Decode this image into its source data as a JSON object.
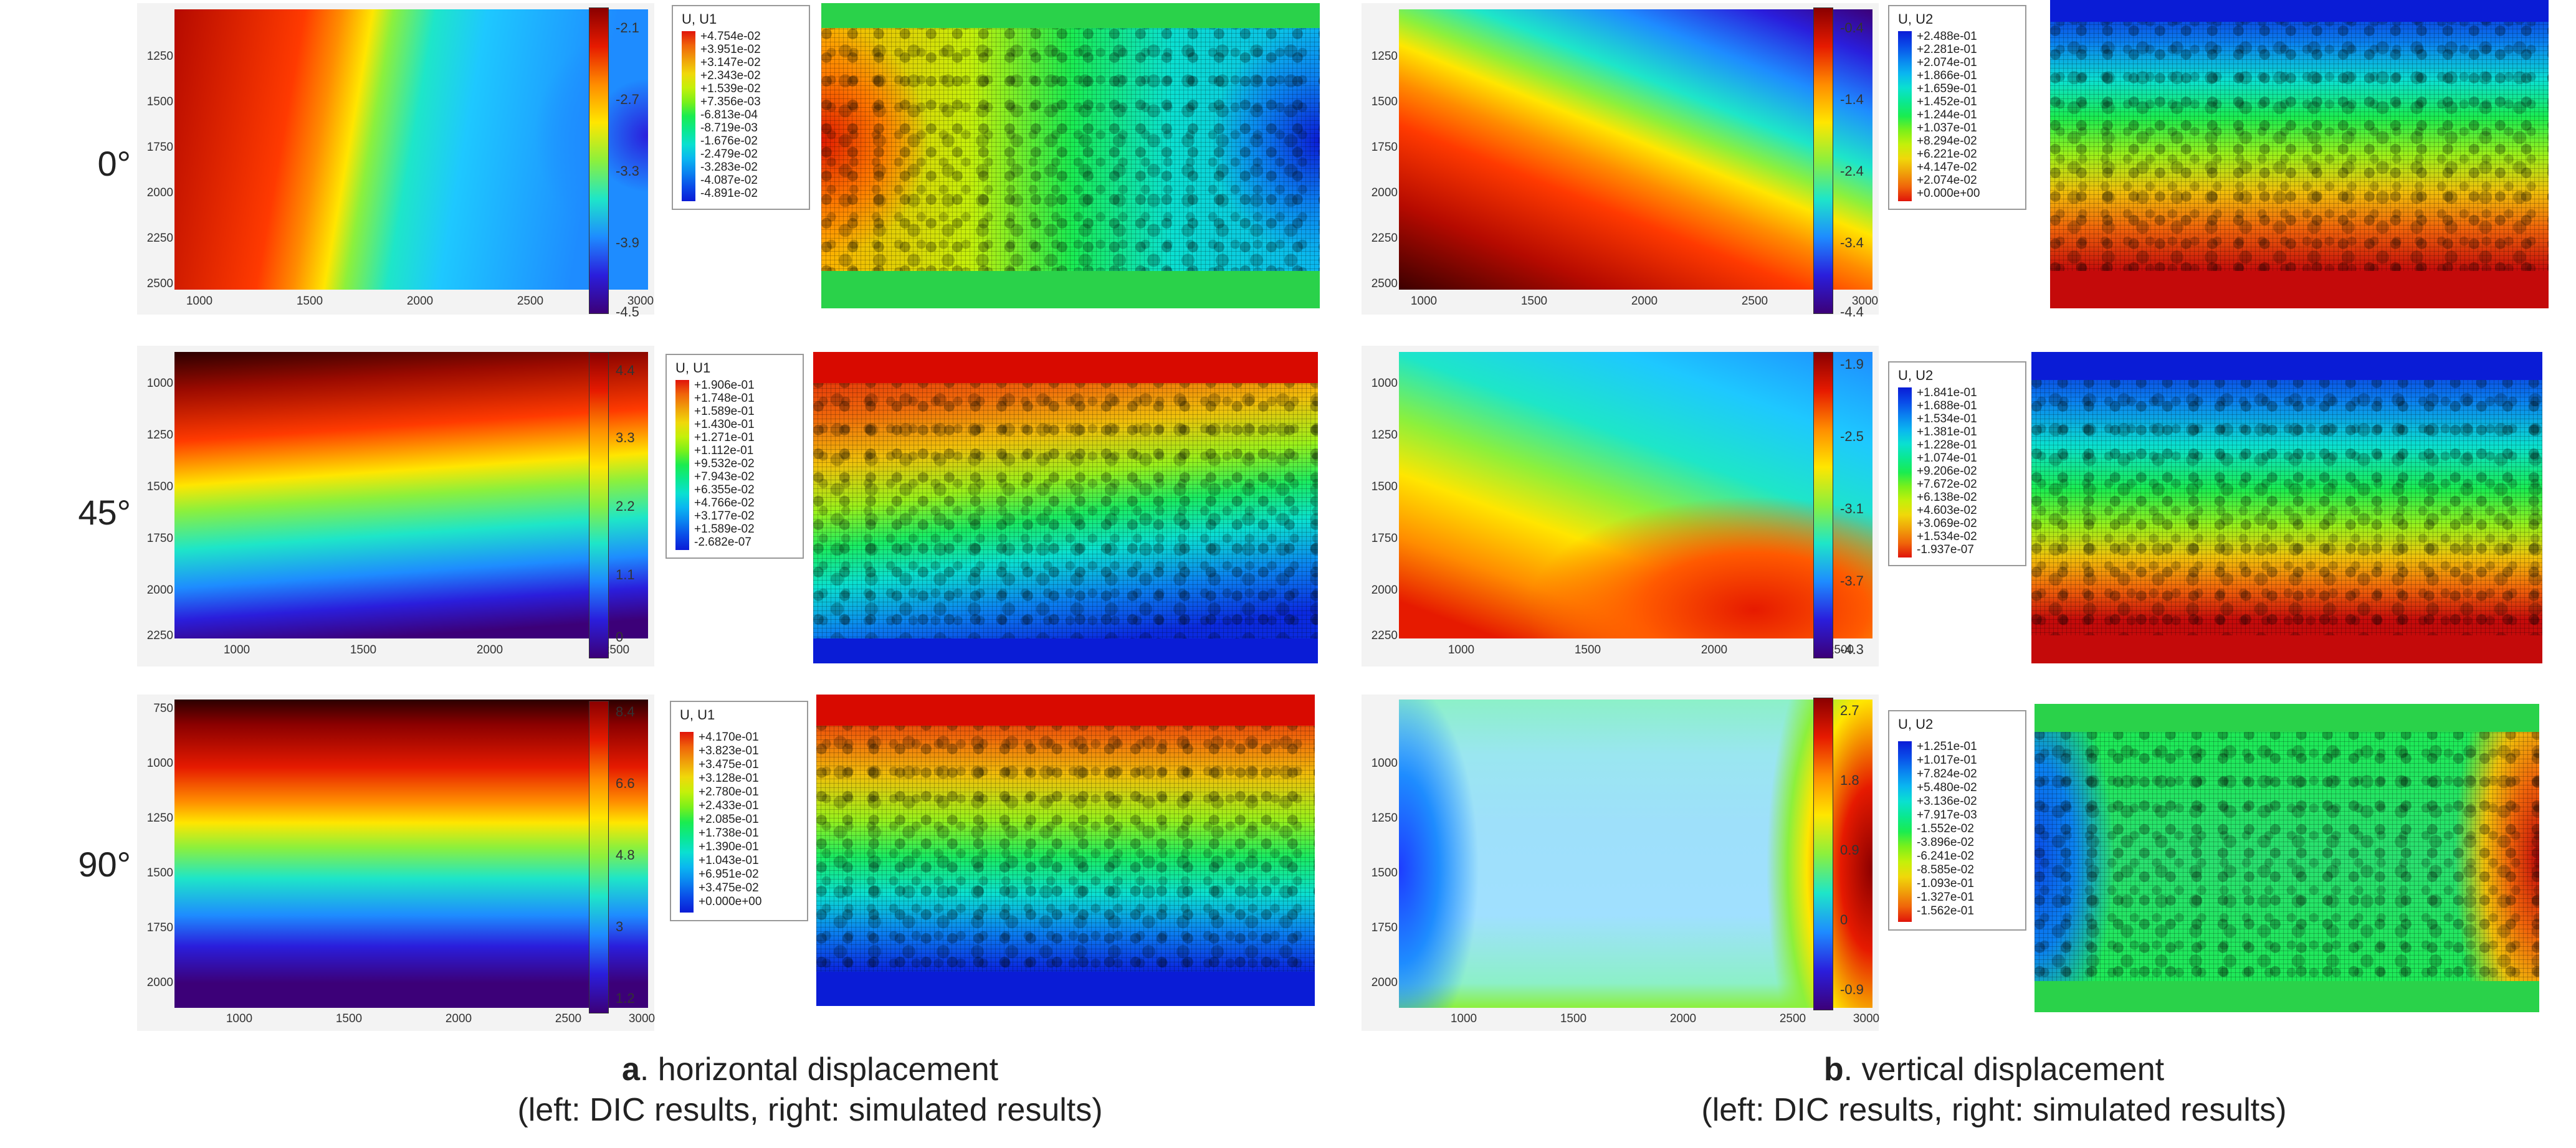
{
  "rows": [
    {
      "label": "0°"
    },
    {
      "label": "45°"
    },
    {
      "label": "90°"
    }
  ],
  "panels_a": [
    {
      "yticks": [
        "1250",
        "1500",
        "1750",
        "2000",
        "2250",
        "2500"
      ],
      "xticks": [
        "1000",
        "1500",
        "2000",
        "2500",
        "3000"
      ],
      "cbar": [
        "-2.1",
        "-2.7",
        "-3.3",
        "-3.9",
        "-4.5"
      ],
      "legend_title": "U, U1",
      "legend": [
        "+4.754e-02",
        "+3.951e-02",
        "+3.147e-02",
        "+2.343e-02",
        "+1.539e-02",
        "+7.356e-03",
        "-6.813e-04",
        "-8.719e-03",
        "-1.676e-02",
        "-2.479e-02",
        "-3.283e-02",
        "-4.087e-02",
        "-4.891e-02"
      ]
    },
    {
      "yticks": [
        "1000",
        "1250",
        "1500",
        "1750",
        "2000",
        "2250"
      ],
      "xticks": [
        "1000",
        "1500",
        "2000",
        "2500"
      ],
      "cbar": [
        "4.4",
        "3.3",
        "2.2",
        "1.1",
        "0"
      ],
      "legend_title": "U, U1",
      "legend": [
        "+1.906e-01",
        "+1.748e-01",
        "+1.589e-01",
        "+1.430e-01",
        "+1.271e-01",
        "+1.112e-01",
        "+9.532e-02",
        "+7.943e-02",
        "+6.355e-02",
        "+4.766e-02",
        "+3.177e-02",
        "+1.589e-02",
        "-2.682e-07"
      ]
    },
    {
      "yticks": [
        "750",
        "1000",
        "1250",
        "1500",
        "1750",
        "2000"
      ],
      "xticks": [
        "1000",
        "1500",
        "2000",
        "2500",
        "3000"
      ],
      "cbar": [
        "8.4",
        "6.6",
        "4.8",
        "3",
        "1.2"
      ],
      "legend_title": "U, U1",
      "legend": [
        "+4.170e-01",
        "+3.823e-01",
        "+3.475e-01",
        "+3.128e-01",
        "+2.780e-01",
        "+2.433e-01",
        "+2.085e-01",
        "+1.738e-01",
        "+1.390e-01",
        "+1.043e-01",
        "+6.951e-02",
        "+3.475e-02",
        "+0.000e+00"
      ]
    }
  ],
  "panels_b": [
    {
      "yticks": [
        "1250",
        "1500",
        "1750",
        "2000",
        "2250",
        "2500"
      ],
      "xticks": [
        "1000",
        "1500",
        "2000",
        "2500",
        "3000"
      ],
      "cbar": [
        "-0.4",
        "-1.4",
        "-2.4",
        "-3.4",
        "-4.4"
      ],
      "legend_title": "U, U2",
      "legend": [
        "+2.488e-01",
        "+2.281e-01",
        "+2.074e-01",
        "+1.866e-01",
        "+1.659e-01",
        "+1.452e-01",
        "+1.244e-01",
        "+1.037e-01",
        "+8.294e-02",
        "+6.221e-02",
        "+4.147e-02",
        "+2.074e-02",
        "+0.000e+00"
      ]
    },
    {
      "yticks": [
        "1000",
        "1250",
        "1500",
        "1750",
        "2000",
        "2250"
      ],
      "xticks": [
        "1000",
        "1500",
        "2000",
        "2500"
      ],
      "cbar": [
        "-1.9",
        "-2.5",
        "-3.1",
        "-3.7",
        "-4.3"
      ],
      "legend_title": "U, U2",
      "legend": [
        "+1.841e-01",
        "+1.688e-01",
        "+1.534e-01",
        "+1.381e-01",
        "+1.228e-01",
        "+1.074e-01",
        "+9.206e-02",
        "+7.672e-02",
        "+6.138e-02",
        "+4.603e-02",
        "+3.069e-02",
        "+1.534e-02",
        "-1.937e-07"
      ]
    },
    {
      "yticks": [
        "1000",
        "1250",
        "1500",
        "1750",
        "2000"
      ],
      "xticks": [
        "1000",
        "1500",
        "2000",
        "2500",
        "3000"
      ],
      "cbar": [
        "2.7",
        "1.8",
        "0.9",
        "0",
        "-0.9"
      ],
      "legend_title": "U, U2",
      "legend": [
        "+1.251e-01",
        "+1.017e-01",
        "+7.824e-02",
        "+5.480e-02",
        "+3.136e-02",
        "+7.917e-03",
        "-1.552e-02",
        "-3.896e-02",
        "-6.241e-02",
        "-8.585e-02",
        "-1.093e-01",
        "-1.327e-01",
        "-1.562e-01"
      ]
    }
  ],
  "captions": {
    "a_letter": "a",
    "a_text": ". horizontal displacement",
    "a_sub": "(left: DIC results, right: simulated results)",
    "b_letter": "b",
    "b_text": ". vertical displacement",
    "b_sub": "(left: DIC results, right: simulated results)"
  },
  "colors": {
    "legend_scale": [
      "#0a1cd6",
      "#0a4ae8",
      "#0a82f0",
      "#0ab6f0",
      "#0ae0d0",
      "#0ae890",
      "#1aec50",
      "#7af01a",
      "#c4f00a",
      "#f0d80a",
      "#f0a00a",
      "#f0640a",
      "#e0140a"
    ],
    "cbar_scale": [
      "#8a0000",
      "#e61a00",
      "#ff8c00",
      "#ffe600",
      "#8cf03c",
      "#1ee6c8",
      "#1e8cff",
      "#2a1edc",
      "#3c0078"
    ]
  }
}
